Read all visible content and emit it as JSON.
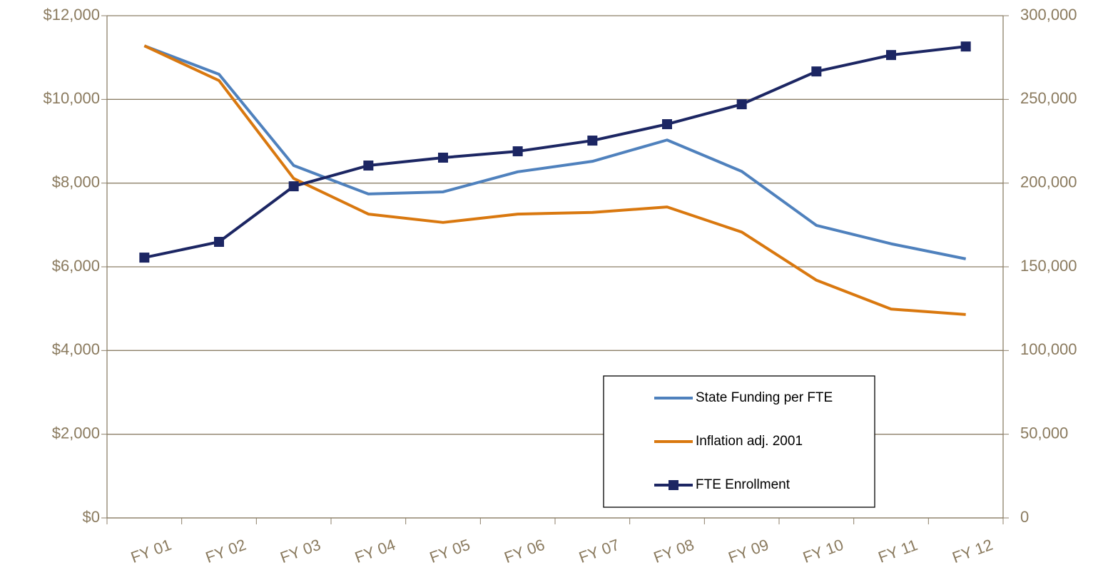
{
  "chart_data": {
    "type": "line",
    "categories": [
      "FY 01",
      "FY 02",
      "FY 03",
      "FY 04",
      "FY 05",
      "FY 06",
      "FY 07",
      "FY 08",
      "FY 09",
      "FY 10",
      "FY 11",
      "FY 12"
    ],
    "series": [
      {
        "name": "State Funding per FTE",
        "color": "#4f81bd",
        "values": [
          11280,
          10600,
          8420,
          7740,
          7790,
          8270,
          8520,
          9030,
          8280,
          6990,
          6550,
          6190
        ]
      },
      {
        "name": "Inflation adj. 2001",
        "color": "#d9780f",
        "values": [
          11280,
          10450,
          8110,
          7260,
          7060,
          7260,
          7300,
          7430,
          6830,
          5680,
          4990,
          4860
        ]
      },
      {
        "name": "FTE Enrollment",
        "color": "#1c2663",
        "axis": "y2",
        "marker": "square",
        "values": [
          155500,
          164900,
          198100,
          210500,
          215200,
          219000,
          225400,
          235200,
          247100,
          266700,
          276500,
          281600
        ]
      }
    ],
    "ylim": [
      0,
      12000
    ],
    "yticks": [
      {
        "value": 0,
        "label": "$0"
      },
      {
        "value": 2000,
        "label": "$2,000"
      },
      {
        "value": 4000,
        "label": "$4,000"
      },
      {
        "value": 6000,
        "label": "$6,000"
      },
      {
        "value": 8000,
        "label": "$8,000"
      },
      {
        "value": 10000,
        "label": "$10,000"
      },
      {
        "value": 12000,
        "label": "$12,000"
      }
    ],
    "y2lim": [
      0,
      300000
    ],
    "y2ticks": [
      0,
      {
        "value": 50000,
        "label": "50,000"
      },
      {
        "value": 100000,
        "label": "100,000"
      },
      {
        "value": 150000,
        "label": "150,000"
      },
      {
        "value": 200000,
        "label": "200,000"
      },
      {
        "value": 250000,
        "label": "250,000"
      },
      {
        "value": 300000,
        "label": "300,000"
      }
    ],
    "grid": true,
    "legend": "lower right"
  }
}
